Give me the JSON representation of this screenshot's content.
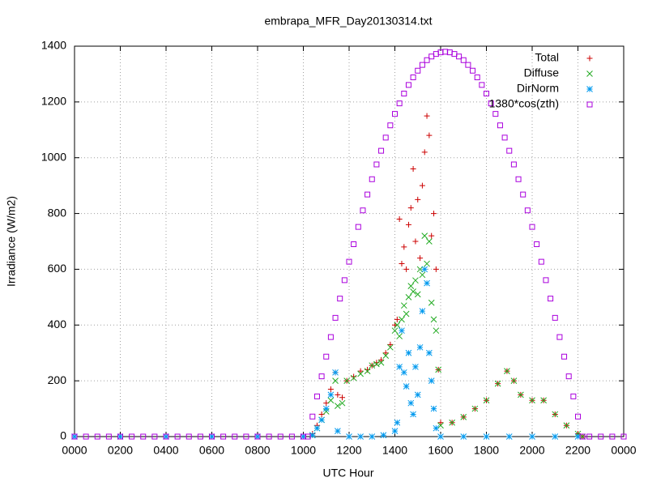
{
  "chart_data": {
    "type": "scatter",
    "title": "embrapa_MFR_Day20130314.txt",
    "x_label": "UTC Hour",
    "y_label": "Irradiance (W/m2)",
    "xlim": [
      0,
      24
    ],
    "xticks": [
      {
        "value": 0,
        "label": "0000"
      },
      {
        "value": 2,
        "label": "0200"
      },
      {
        "value": 4,
        "label": "0400"
      },
      {
        "value": 6,
        "label": "0600"
      },
      {
        "value": 8,
        "label": "0800"
      },
      {
        "value": 10,
        "label": "1000"
      },
      {
        "value": 12,
        "label": "1200"
      },
      {
        "value": 14,
        "label": "1400"
      },
      {
        "value": 16,
        "label": "1600"
      },
      {
        "value": 18,
        "label": "1800"
      },
      {
        "value": 20,
        "label": "2000"
      },
      {
        "value": 22,
        "label": "2200"
      },
      {
        "value": 24,
        "label": "0000"
      }
    ],
    "ylim": [
      0,
      1400
    ],
    "yticks": [
      0,
      200,
      400,
      600,
      800,
      1000,
      1200,
      1400
    ],
    "grid": true,
    "legend": "top-right",
    "series": [
      {
        "name": "Total",
        "color": "#cc0000",
        "marker": "plus",
        "x": [
          10.4,
          10.6,
          10.8,
          11.0,
          11.2,
          11.4,
          11.5,
          11.7,
          11.9,
          12.2,
          12.5,
          12.8,
          13.0,
          13.2,
          13.4,
          13.6,
          13.8,
          14.0,
          14.1,
          14.2,
          14.3,
          14.4,
          14.5,
          14.6,
          14.7,
          14.8,
          14.9,
          15.0,
          15.1,
          15.2,
          15.3,
          15.4,
          15.5,
          15.6,
          15.7,
          15.8,
          15.9,
          16.0,
          16.5,
          17.0,
          17.5,
          18.0,
          18.5,
          18.9,
          19.2,
          19.5,
          20.0,
          20.5,
          21.0,
          21.5,
          22.0,
          22.2
        ],
        "values": [
          10,
          40,
          80,
          120,
          170,
          230,
          150,
          140,
          200,
          215,
          235,
          240,
          255,
          265,
          275,
          300,
          330,
          400,
          420,
          780,
          620,
          680,
          600,
          760,
          820,
          960,
          700,
          850,
          640,
          900,
          1020,
          1150,
          1080,
          720,
          800,
          600,
          240,
          50,
          50,
          70,
          100,
          130,
          190,
          235,
          200,
          150,
          130,
          130,
          80,
          40,
          10,
          0
        ]
      },
      {
        "name": "Diffuse",
        "color": "#22aa22",
        "marker": "cross",
        "x": [
          10.4,
          10.6,
          10.8,
          11.0,
          11.2,
          11.4,
          11.5,
          11.7,
          11.9,
          12.2,
          12.5,
          12.8,
          13.0,
          13.2,
          13.4,
          13.6,
          13.8,
          14.0,
          14.1,
          14.2,
          14.3,
          14.4,
          14.5,
          14.6,
          14.7,
          14.8,
          14.9,
          15.0,
          15.1,
          15.2,
          15.3,
          15.4,
          15.5,
          15.6,
          15.7,
          15.8,
          15.9,
          16.0,
          16.5,
          17.0,
          17.5,
          18.0,
          18.5,
          18.9,
          19.2,
          19.5,
          20.0,
          20.5,
          21.0,
          21.5,
          22.0,
          22.2
        ],
        "values": [
          5,
          30,
          60,
          90,
          130,
          200,
          110,
          120,
          200,
          210,
          225,
          235,
          255,
          260,
          265,
          290,
          320,
          380,
          400,
          360,
          420,
          470,
          440,
          500,
          540,
          520,
          560,
          510,
          600,
          580,
          720,
          620,
          700,
          480,
          420,
          380,
          240,
          40,
          50,
          70,
          100,
          130,
          190,
          235,
          200,
          150,
          130,
          130,
          80,
          40,
          10,
          0
        ]
      },
      {
        "name": "DirNorm",
        "color": "#0099ee",
        "marker": "star",
        "x": [
          0,
          2,
          4,
          6,
          8,
          10,
          10.4,
          10.6,
          10.8,
          11.0,
          11.2,
          11.4,
          11.5,
          12.0,
          12.5,
          13.0,
          13.5,
          14.0,
          14.1,
          14.2,
          14.3,
          14.4,
          14.5,
          14.6,
          14.7,
          14.8,
          14.9,
          15.0,
          15.1,
          15.2,
          15.3,
          15.4,
          15.5,
          15.6,
          15.7,
          15.8,
          16.0,
          17.0,
          18.0,
          19.0,
          20.0,
          21.0,
          22.0
        ],
        "values": [
          0,
          0,
          0,
          0,
          0,
          0,
          5,
          30,
          60,
          100,
          150,
          230,
          20,
          0,
          0,
          0,
          5,
          20,
          50,
          250,
          380,
          230,
          180,
          300,
          120,
          80,
          250,
          150,
          320,
          450,
          600,
          550,
          300,
          200,
          100,
          30,
          0,
          0,
          0,
          0,
          0,
          0,
          0
        ]
      },
      {
        "name": "1380*cos(zth)",
        "color": "#aa00dd",
        "marker": "square",
        "x": [
          0,
          0.5,
          1,
          1.5,
          2,
          2.5,
          3,
          3.5,
          4,
          4.5,
          5,
          5.5,
          6,
          6.5,
          7,
          7.5,
          8,
          8.5,
          9,
          9.5,
          10,
          10.2,
          10.4,
          10.6,
          10.8,
          11.0,
          11.2,
          11.4,
          11.6,
          11.8,
          12.0,
          12.2,
          12.4,
          12.6,
          12.8,
          13.0,
          13.2,
          13.4,
          13.6,
          13.8,
          14.0,
          14.2,
          14.4,
          14.6,
          14.8,
          15.0,
          15.2,
          15.4,
          15.6,
          15.8,
          16.0,
          16.2,
          16.4,
          16.6,
          16.8,
          17.0,
          17.2,
          17.4,
          17.6,
          17.8,
          18.0,
          18.2,
          18.4,
          18.6,
          18.8,
          19.0,
          19.2,
          19.4,
          19.6,
          19.8,
          20.0,
          20.2,
          20.4,
          20.6,
          20.8,
          21.0,
          21.2,
          21.4,
          21.6,
          21.8,
          22.0,
          22.2,
          22.5,
          23,
          23.5,
          24
        ],
        "values": [
          0,
          0,
          0,
          0,
          0,
          0,
          0,
          0,
          0,
          0,
          0,
          0,
          0,
          0,
          0,
          0,
          0,
          0,
          0,
          0,
          0,
          0,
          72,
          144,
          216,
          287,
          357,
          426,
          495,
          561,
          627,
          690,
          752,
          811,
          868,
          923,
          976,
          1025,
          1072,
          1116,
          1157,
          1195,
          1230,
          1261,
          1288,
          1312,
          1333,
          1350,
          1363,
          1372,
          1378,
          1380,
          1378,
          1372,
          1363,
          1350,
          1333,
          1312,
          1288,
          1261,
          1230,
          1195,
          1157,
          1116,
          1072,
          1025,
          976,
          923,
          868,
          811,
          752,
          690,
          627,
          561,
          495,
          426,
          357,
          287,
          216,
          144,
          72,
          0,
          0,
          0,
          0,
          0
        ]
      }
    ]
  }
}
